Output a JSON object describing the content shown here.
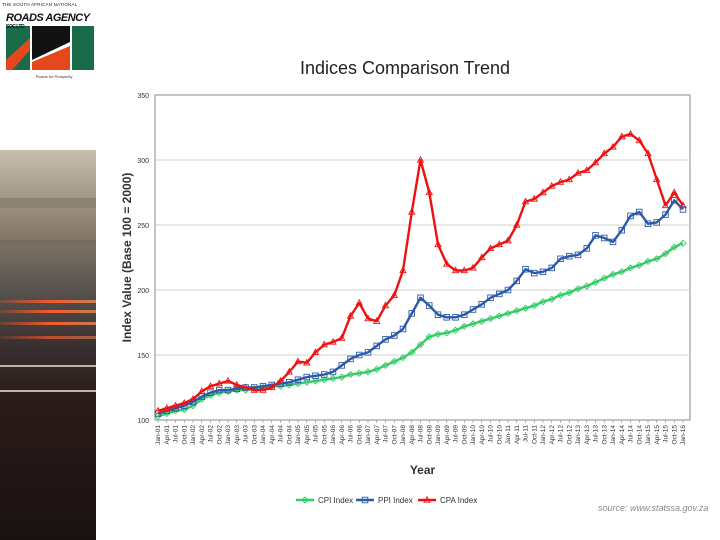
{
  "logo": {
    "tagline": "THE SOUTH AFRICAN NATIONAL",
    "wordmark": "ROADS AGENCY",
    "suffix": "SOC LTD",
    "slogan": "Roads for Prosperity"
  },
  "source_note": "source: www.statssa.gov.za",
  "colors": {
    "cpi": "#33cc66",
    "ppi": "#2b5aa8",
    "cpa": "#ee1111"
  },
  "chart_data": {
    "type": "line",
    "title": "Indices Comparison Trend",
    "xlabel": "Year",
    "ylabel": "Index Value (Base 100 = 2000)",
    "ylim": [
      100,
      350
    ],
    "yticks": [
      100,
      150,
      200,
      250,
      300,
      350
    ],
    "grid": true,
    "legend": "bottom",
    "categories": [
      "Jan-01",
      "Apr-01",
      "Jul-01",
      "Oct-01",
      "Jan-02",
      "Apr-02",
      "Jul-02",
      "Oct-02",
      "Jan-03",
      "Apr-03",
      "Jul-03",
      "Oct-03",
      "Jan-04",
      "Apr-04",
      "Jul-04",
      "Oct-04",
      "Jan-05",
      "Apr-05",
      "Jul-05",
      "Oct-05",
      "Jan-06",
      "Apr-06",
      "Jul-06",
      "Oct-06",
      "Jan-07",
      "Apr-07",
      "Jul-07",
      "Oct-07",
      "Jan-08",
      "Apr-08",
      "Jul-08",
      "Oct-08",
      "Jan-09",
      "Apr-09",
      "Jul-09",
      "Oct-09",
      "Jan-10",
      "Apr-10",
      "Jul-10",
      "Oct-10",
      "Jan-11",
      "Apr-11",
      "Jul-11",
      "Oct-11",
      "Jan-12",
      "Apr-12",
      "Jul-12",
      "Oct-12",
      "Jan-13",
      "Apr-13",
      "Jul-13",
      "Oct-13",
      "Jan-14",
      "Apr-14",
      "Jul-14",
      "Oct-14",
      "Jan-15",
      "Apr-15",
      "Jul-15",
      "Oct-15",
      "Jan-16"
    ],
    "series": [
      {
        "name": "CPI Index",
        "key": "cpi",
        "values": [
          103,
          105,
          107,
          108,
          111,
          116,
          119,
          121,
          122,
          123,
          123,
          124,
          125,
          126,
          126,
          127,
          128,
          129,
          130,
          131,
          132,
          133,
          135,
          136,
          137,
          139,
          142,
          145,
          148,
          152,
          158,
          164,
          166,
          167,
          169,
          172,
          174,
          176,
          178,
          180,
          182,
          184,
          186,
          188,
          191,
          193,
          196,
          198,
          201,
          203,
          206,
          209,
          212,
          214,
          217,
          219,
          222,
          224,
          228,
          233,
          236
        ]
      },
      {
        "name": "PPI Index",
        "key": "ppi",
        "values": [
          105,
          107,
          109,
          111,
          114,
          118,
          121,
          123,
          123,
          124,
          125,
          125,
          126,
          127,
          128,
          129,
          131,
          133,
          134,
          135,
          137,
          142,
          147,
          150,
          152,
          157,
          162,
          165,
          170,
          182,
          194,
          188,
          181,
          179,
          179,
          181,
          185,
          189,
          194,
          197,
          200,
          207,
          216,
          213,
          214,
          217,
          224,
          226,
          227,
          232,
          242,
          240,
          237,
          246,
          257,
          260,
          251,
          252,
          258,
          269,
          262
        ]
      },
      {
        "name": "CPA Index",
        "key": "cpa",
        "values": [
          107,
          109,
          111,
          113,
          116,
          122,
          126,
          128,
          130,
          127,
          125,
          123,
          123,
          125,
          130,
          137,
          145,
          144,
          152,
          158,
          160,
          163,
          180,
          190,
          178,
          176,
          188,
          196,
          215,
          260,
          300,
          275,
          235,
          220,
          215,
          215,
          217,
          225,
          232,
          235,
          238,
          250,
          268,
          270,
          275,
          280,
          283,
          285,
          290,
          292,
          298,
          305,
          310,
          318,
          320,
          315,
          305,
          285,
          265,
          275,
          265
        ]
      }
    ]
  }
}
